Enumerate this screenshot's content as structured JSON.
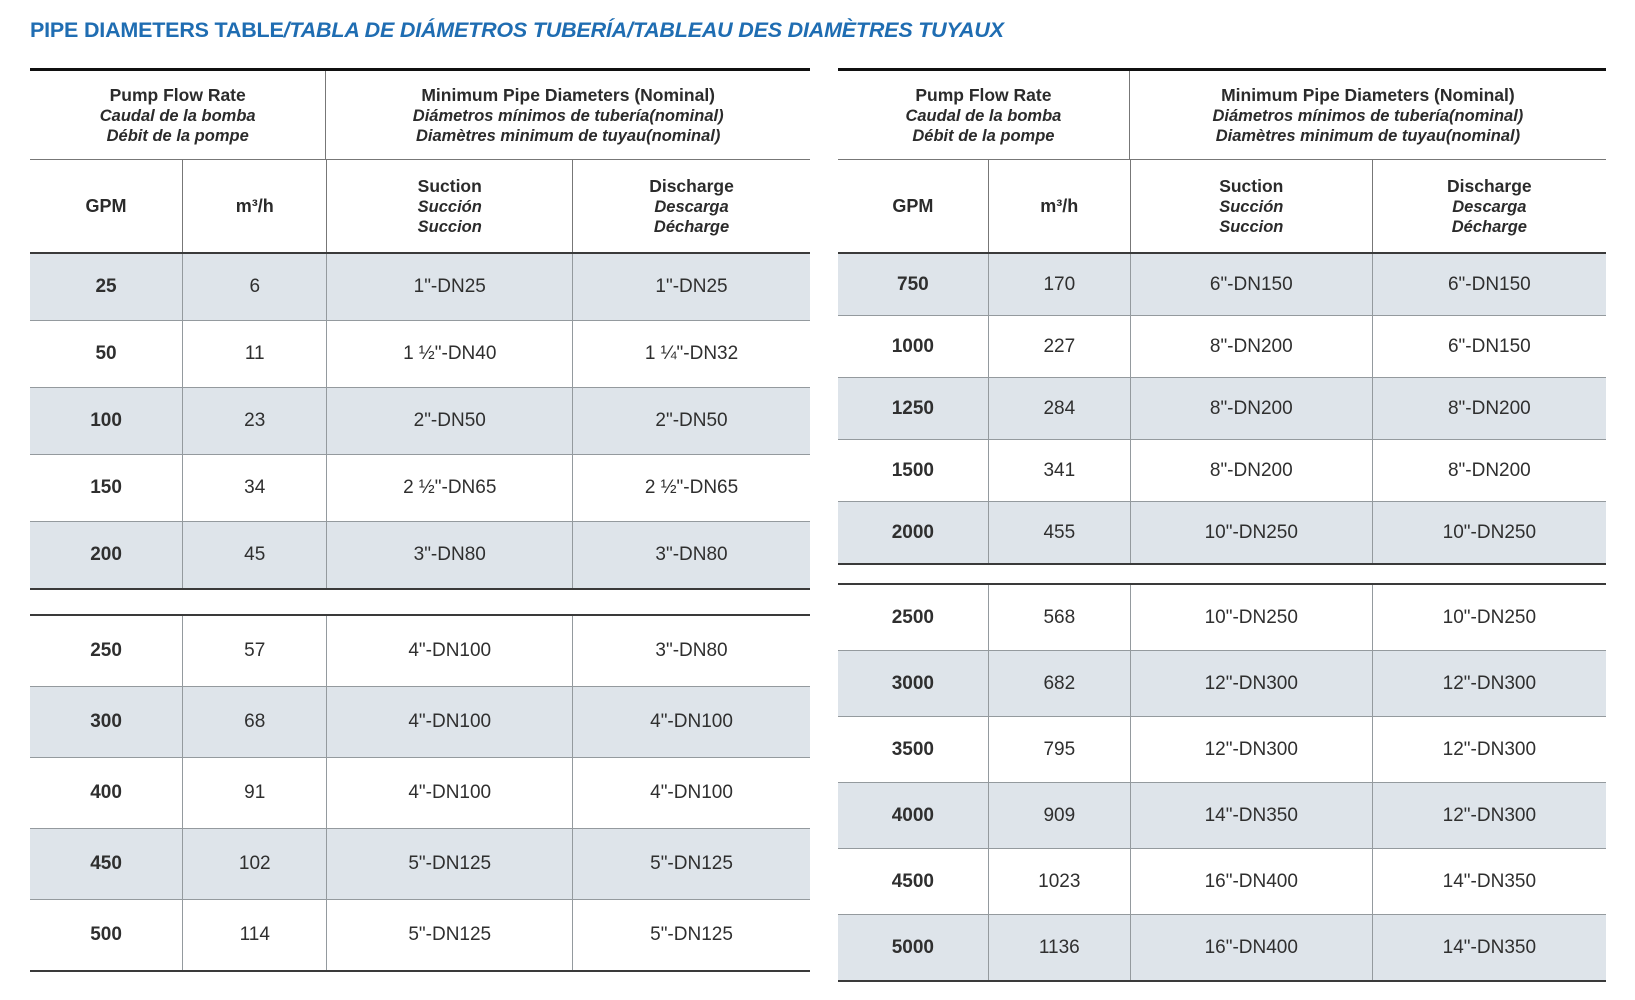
{
  "title": {
    "main": "PIPE DIAMETERS TABLE",
    "translations": "/TABLA DE DIÁMETROS TUBERÍA/TABLEAU DES DIAMÈTRES TUYAUX"
  },
  "colors": {
    "title_blue": "#1f6db2",
    "row_shade": "#dee4ea",
    "border_dark": "#101010"
  },
  "header": {
    "flow_group": {
      "en": "Pump Flow Rate",
      "es": "Caudal de la bomba",
      "fr": "Débit de la pompe"
    },
    "diameters_group": {
      "en": "Minimum Pipe Diameters (Nominal)",
      "es": "Diámetros mínimos de tubería(nominal)",
      "fr": "Diamètres minimum de tuyau(nominal)"
    },
    "columns": {
      "gpm": "GPM",
      "m3h": "m³/h",
      "suction": {
        "en": "Suction",
        "es": "Succión",
        "fr": "Succion"
      },
      "discharge": {
        "en": "Discharge",
        "es": "Descarga",
        "fr": "Décharge"
      }
    }
  },
  "tables": [
    {
      "sections": [
        {
          "rows": [
            {
              "shaded": true,
              "cells": [
                "25",
                "6",
                "1\"-DN25",
                "1\"-DN25"
              ]
            },
            {
              "shaded": false,
              "cells": [
                "50",
                "11",
                "1 ½\"-DN40",
                "1 ¼\"-DN32"
              ]
            },
            {
              "shaded": true,
              "cells": [
                "100",
                "23",
                "2\"-DN50",
                "2\"-DN50"
              ]
            },
            {
              "shaded": false,
              "cells": [
                "150",
                "34",
                "2 ½\"-DN65",
                "2 ½\"-DN65"
              ]
            },
            {
              "shaded": true,
              "cells": [
                "200",
                "45",
                "3\"-DN80",
                "3\"-DN80"
              ]
            }
          ]
        },
        {
          "rows": [
            {
              "shaded": false,
              "cells": [
                "250",
                "57",
                "4\"-DN100",
                "3\"-DN80"
              ]
            },
            {
              "shaded": true,
              "cells": [
                "300",
                "68",
                "4\"-DN100",
                "4\"-DN100"
              ]
            },
            {
              "shaded": false,
              "cells": [
                "400",
                "91",
                "4\"-DN100",
                "4\"-DN100"
              ]
            },
            {
              "shaded": true,
              "cells": [
                "450",
                "102",
                "5\"-DN125",
                "5\"-DN125"
              ]
            },
            {
              "shaded": false,
              "cells": [
                "500",
                "114",
                "5\"-DN125",
                "5\"-DN125"
              ]
            }
          ]
        }
      ]
    },
    {
      "sections": [
        {
          "rows": [
            {
              "shaded": true,
              "cells": [
                "750",
                "170",
                "6\"-DN150",
                "6\"-DN150"
              ]
            },
            {
              "shaded": false,
              "cells": [
                "1000",
                "227",
                "8\"-DN200",
                "6\"-DN150"
              ]
            },
            {
              "shaded": true,
              "cells": [
                "1250",
                "284",
                "8\"-DN200",
                "8\"-DN200"
              ]
            },
            {
              "shaded": false,
              "cells": [
                "1500",
                "341",
                "8\"-DN200",
                "8\"-DN200"
              ]
            },
            {
              "shaded": true,
              "cells": [
                "2000",
                "455",
                "10\"-DN250",
                "10\"-DN250"
              ]
            }
          ]
        },
        {
          "rows": [
            {
              "shaded": false,
              "cells": [
                "2500",
                "568",
                "10\"-DN250",
                "10\"-DN250"
              ]
            },
            {
              "shaded": true,
              "cells": [
                "3000",
                "682",
                "12\"-DN300",
                "12\"-DN300"
              ]
            },
            {
              "shaded": false,
              "cells": [
                "3500",
                "795",
                "12\"-DN300",
                "12\"-DN300"
              ]
            },
            {
              "shaded": true,
              "cells": [
                "4000",
                "909",
                "14\"-DN350",
                "12\"-DN300"
              ]
            },
            {
              "shaded": false,
              "cells": [
                "4500",
                "1023",
                "16\"-DN400",
                "14\"-DN350"
              ]
            },
            {
              "shaded": true,
              "cells": [
                "5000",
                "1136",
                "16\"-DN400",
                "14\"-DN350"
              ]
            }
          ]
        }
      ]
    }
  ]
}
